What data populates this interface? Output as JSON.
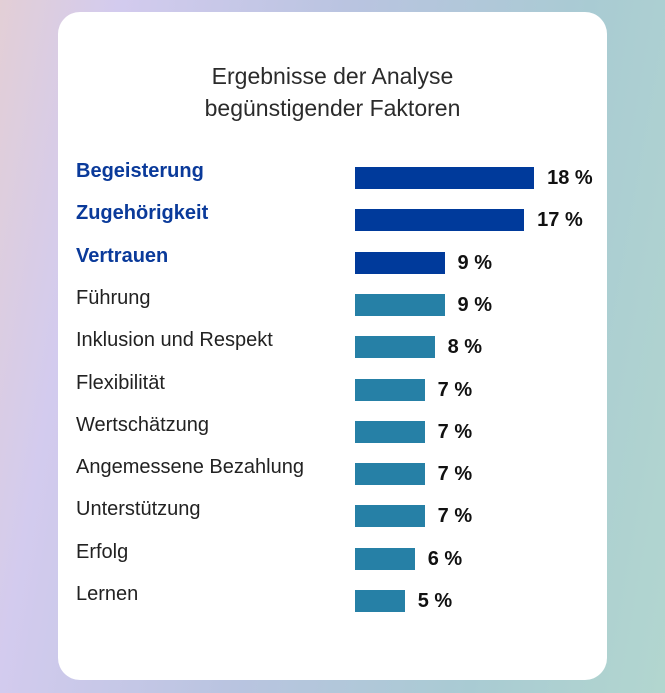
{
  "chart_data": {
    "type": "bar",
    "orientation": "horizontal",
    "title": "Ergebnisse der Analyse begünstigender Faktoren",
    "title_lines": [
      "Ergebnisse der Analyse",
      "begünstigender Faktoren"
    ],
    "categories": [
      "Begeisterung",
      "Zugehörigkeit",
      "Vertrauen",
      "Führung",
      "Inklusion und Respekt",
      "Flexibilität",
      "Wertschätzung",
      "Angemessene Bezahlung",
      "Unterstützung",
      "Erfolg",
      "Lernen"
    ],
    "values": [
      18,
      17,
      9,
      9,
      8,
      7,
      7,
      7,
      7,
      6,
      5
    ],
    "value_labels": [
      "18 %",
      "17 %",
      "9 %",
      "9 %",
      "8 %",
      "7 %",
      "7 %",
      "7 %",
      "7 %",
      "6 %",
      "5 %"
    ],
    "highlighted": [
      true,
      true,
      true,
      false,
      false,
      false,
      false,
      false,
      false,
      false,
      false
    ],
    "unit": "%",
    "grid": false,
    "legend": "none",
    "colors": {
      "highlight": "#003a9b",
      "default": "#2680a6",
      "highlight_label": "#0a3a9a"
    }
  }
}
